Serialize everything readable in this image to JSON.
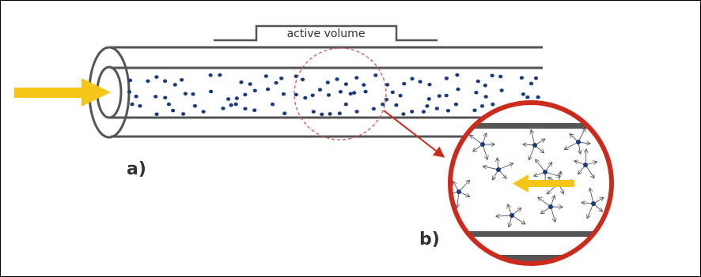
{
  "figure": {
    "active_volume_label": "active volume",
    "label_a": "a)",
    "label_b": "b)",
    "colors": {
      "tube": "#555555",
      "particle": "#1a3a80",
      "arrow": "#f5c518",
      "magnifier": "#cc2a1a",
      "zoom_circle": "#d9534f",
      "velocity_arrows": "#555555"
    }
  }
}
